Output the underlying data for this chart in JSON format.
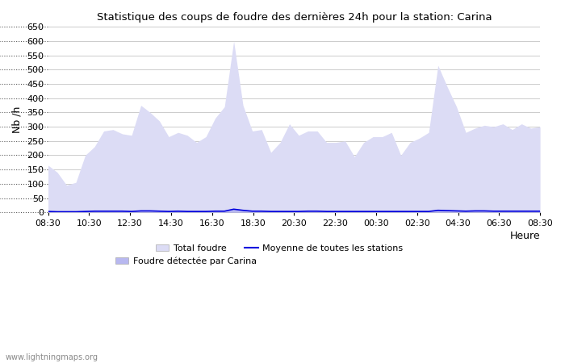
{
  "title": "Statistique des coups de foudre des dernières 24h pour la station: Carina",
  "ylabel": "Nb /h",
  "xlabel": "Heure",
  "watermark": "www.lightningmaps.org",
  "ylim": [
    0,
    650
  ],
  "yticks": [
    0,
    50,
    100,
    150,
    200,
    250,
    300,
    350,
    400,
    450,
    500,
    550,
    600,
    650
  ],
  "xtick_labels": [
    "08:30",
    "10:30",
    "12:30",
    "14:30",
    "16:30",
    "18:30",
    "20:30",
    "22:30",
    "00:30",
    "02:30",
    "04:30",
    "06:30",
    "08:30"
  ],
  "background_color": "#ffffff",
  "grid_color": "#cccccc",
  "fill_total_color": "#dcdcf5",
  "fill_carina_color": "#b8b8f0",
  "mean_line_color": "#0000dd",
  "legend_total": "Total foudre",
  "legend_carina": "Foudre détectée par Carina",
  "legend_mean": "Moyenne de toutes les stations",
  "total_foudre": [
    165,
    140,
    95,
    105,
    200,
    230,
    285,
    290,
    275,
    270,
    375,
    350,
    320,
    265,
    280,
    270,
    245,
    265,
    330,
    370,
    600,
    375,
    285,
    290,
    210,
    245,
    310,
    270,
    285,
    285,
    245,
    245,
    250,
    195,
    245,
    265,
    265,
    280,
    200,
    245,
    260,
    280,
    515,
    440,
    370,
    280,
    295,
    305,
    300,
    310,
    290,
    310,
    295,
    300
  ],
  "foudre_carina": [
    4,
    3,
    2,
    3,
    4,
    5,
    5,
    5,
    5,
    4,
    6,
    6,
    5,
    4,
    5,
    4,
    4,
    4,
    5,
    5,
    13,
    9,
    5,
    5,
    4,
    4,
    4,
    4,
    5,
    5,
    4,
    4,
    4,
    4,
    4,
    4,
    4,
    4,
    4,
    4,
    4,
    4,
    9,
    8,
    7,
    5,
    6,
    6,
    5,
    5,
    5,
    5,
    5,
    5
  ],
  "mean_line": [
    3,
    2,
    2,
    2,
    3,
    4,
    4,
    4,
    4,
    3,
    5,
    5,
    4,
    3,
    4,
    3,
    3,
    3,
    4,
    4,
    11,
    7,
    4,
    4,
    3,
    3,
    3,
    3,
    4,
    4,
    3,
    3,
    3,
    3,
    3,
    3,
    3,
    3,
    3,
    3,
    3,
    3,
    7,
    6,
    5,
    4,
    5,
    5,
    4,
    4,
    4,
    4,
    4,
    4
  ],
  "n_points": 54
}
